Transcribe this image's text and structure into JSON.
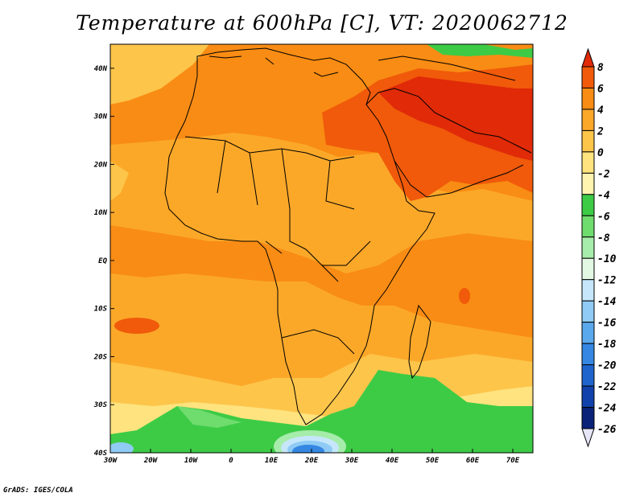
{
  "title": "Temperature at 600hPa [C], VT: 2020062712",
  "credit": "GrADS: IGES/COLA",
  "map": {
    "lon_range": [
      -30,
      75
    ],
    "lat_range": [
      -40,
      45
    ],
    "lat_ticks": [
      {
        "value": 40,
        "label": "40N"
      },
      {
        "value": 30,
        "label": "30N"
      },
      {
        "value": 20,
        "label": "20N"
      },
      {
        "value": 10,
        "label": "10N"
      },
      {
        "value": 0,
        "label": "EQ"
      },
      {
        "value": -10,
        "label": "10S"
      },
      {
        "value": -20,
        "label": "20S"
      },
      {
        "value": -30,
        "label": "30S"
      },
      {
        "value": -40,
        "label": "40S"
      }
    ],
    "lon_ticks": [
      {
        "value": -30,
        "label": "30W"
      },
      {
        "value": -20,
        "label": "20W"
      },
      {
        "value": -10,
        "label": "10W"
      },
      {
        "value": 0,
        "label": "0"
      },
      {
        "value": 10,
        "label": "10E"
      },
      {
        "value": 20,
        "label": "20E"
      },
      {
        "value": 30,
        "label": "30E"
      },
      {
        "value": 40,
        "label": "40E"
      },
      {
        "value": 50,
        "label": "50E"
      },
      {
        "value": 60,
        "label": "60E"
      },
      {
        "value": 70,
        "label": "70E"
      }
    ]
  },
  "colorbar": {
    "labels": [
      "8",
      "6",
      "4",
      "2",
      "0",
      "-2",
      "-4",
      "-6",
      "-8",
      "-10",
      "-12",
      "-14",
      "-16",
      "-18",
      "-20",
      "-22",
      "-24",
      "-26"
    ],
    "colors": [
      "#e02a08",
      "#f05a0a",
      "#f98c14",
      "#fba829",
      "#fdc54a",
      "#fee37e",
      "#fff3b0",
      "#3dcb46",
      "#6fdc6e",
      "#a6ecaa",
      "#e2f8e3",
      "#c6e7fb",
      "#8fcbf5",
      "#5aa9ed",
      "#3587e2",
      "#1f64cc",
      "#1141aa",
      "#0a2278",
      "#e6e6f8"
    ]
  }
}
